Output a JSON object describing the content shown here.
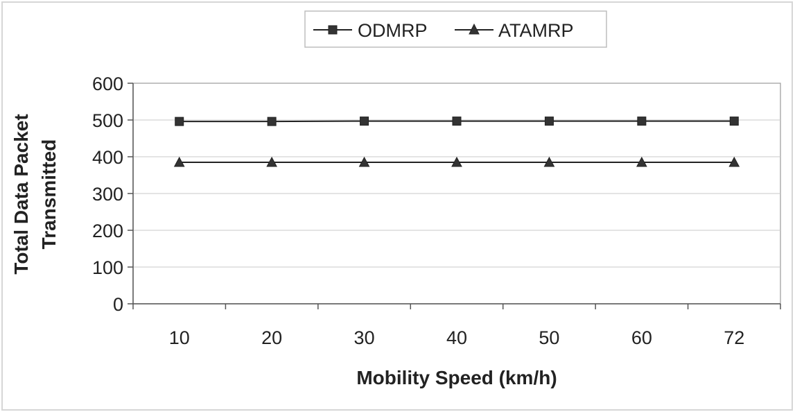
{
  "chart_data": {
    "type": "line",
    "categories": [
      "10",
      "20",
      "30",
      "40",
      "50",
      "60",
      "72"
    ],
    "series": [
      {
        "name": "ODMRP",
        "marker": "square",
        "values": [
          496,
          496,
          497,
          497,
          497,
          497,
          497
        ]
      },
      {
        "name": "ATAMRP",
        "marker": "triangle",
        "values": [
          385,
          385,
          385,
          385,
          385,
          385,
          385
        ]
      }
    ],
    "title": "",
    "xlabel": "Mobility Speed (km/h)",
    "ylabel_lines": [
      "Total Data Packet",
      "Transmitted"
    ],
    "ylim": [
      0,
      600
    ],
    "yticks": [
      "0",
      "100",
      "200",
      "300",
      "400",
      "500",
      "600"
    ],
    "grid": true,
    "legend_position": "top",
    "colors": {
      "line": "#222222",
      "marker": "#333333",
      "grid": "#c8c8c8",
      "frame": "#999999"
    }
  }
}
